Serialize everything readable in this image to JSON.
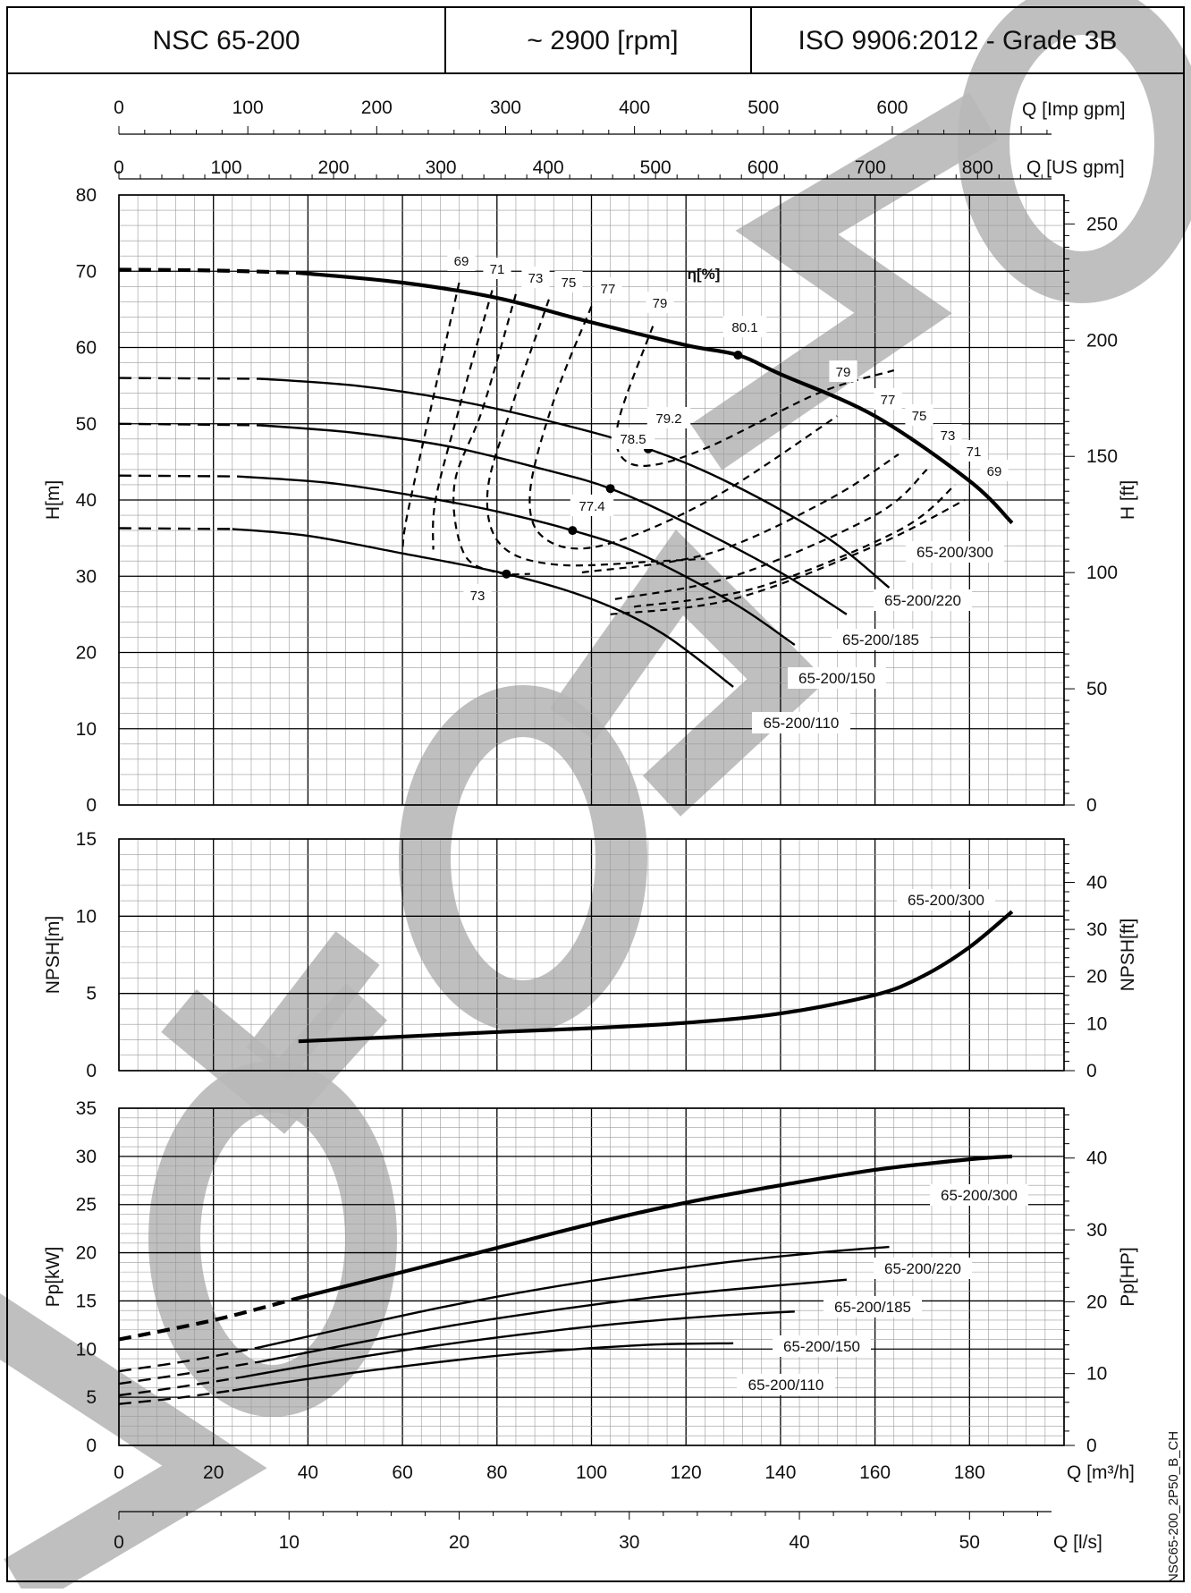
{
  "header": {
    "model": "NSC 65-200",
    "speed": "~ 2900 [rpm]",
    "standard": "ISO 9906:2012 - Grade 3B"
  },
  "code": "NSC65-200_2P50_B_CH",
  "watermark": "MOTORMO",
  "colors": {
    "curve": "#000000",
    "grid_major": "#000000",
    "grid_minor": "#9a9a9a",
    "watermark": "#b8b8b8"
  },
  "axes": {
    "q_imp": {
      "label": "Q [Imp gpm]",
      "ticks": [
        "0",
        "100",
        "200",
        "300",
        "400",
        "500",
        "600"
      ]
    },
    "q_us": {
      "label": "Q [US gpm]",
      "ticks": [
        "0",
        "100",
        "200",
        "300",
        "400",
        "500",
        "600",
        "700",
        "800"
      ]
    },
    "q_m3h": {
      "label": "Q [m³/h]",
      "ticks": [
        "0",
        "20",
        "40",
        "60",
        "80",
        "100",
        "120",
        "140",
        "160",
        "180"
      ]
    },
    "q_ls": {
      "label": "Q [l/s]",
      "ticks": [
        "0",
        "10",
        "20",
        "30",
        "40",
        "50"
      ]
    },
    "h_m": {
      "label": "H[m]",
      "ticks": [
        "0",
        "10",
        "20",
        "30",
        "40",
        "50",
        "60",
        "70",
        "80"
      ]
    },
    "h_ft": {
      "label": "H [ft]",
      "ticks": [
        "0",
        "50",
        "100",
        "150",
        "200",
        "250"
      ]
    },
    "npsh_m": {
      "label": "NPSH[m]",
      "ticks": [
        "0",
        "5",
        "10",
        "15"
      ]
    },
    "npsh_ft": {
      "label": "NPSH[ft]",
      "ticks": [
        "0",
        "10",
        "20",
        "30",
        "40"
      ]
    },
    "pp_kw": {
      "label": "Pp[kW]",
      "ticks": [
        "0",
        "5",
        "10",
        "15",
        "20",
        "25",
        "30",
        "35"
      ]
    },
    "pp_hp": {
      "label": "Pp[HP]",
      "ticks": [
        "0",
        "10",
        "20",
        "30",
        "40"
      ]
    }
  },
  "chart_data": [
    {
      "type": "line",
      "panel": "head",
      "title": "",
      "xlabel": "Q [m³/h]",
      "ylabel": "H[m]",
      "xlim": [
        0,
        200
      ],
      "ylim": [
        0,
        80
      ],
      "efficiency_label": "η[%]",
      "series": [
        {
          "name": "65-200/300",
          "dashed_until": 38,
          "x": [
            0,
            20,
            38,
            60,
            80,
            100,
            120,
            131,
            140,
            160,
            180,
            189
          ],
          "y": [
            70.2,
            70.1,
            69.8,
            68.5,
            66.5,
            63.3,
            60.3,
            59,
            56.5,
            51,
            42.5,
            37
          ]
        },
        {
          "name": "65-200/220",
          "dashed_until": 30,
          "x": [
            0,
            30,
            50,
            70,
            90,
            112,
            130,
            150,
            163
          ],
          "y": [
            56,
            55.9,
            55,
            53.2,
            50.5,
            46.7,
            42,
            35,
            28.5
          ]
        },
        {
          "name": "65-200/185",
          "dashed_until": 30,
          "x": [
            0,
            30,
            50,
            70,
            90,
            104,
            120,
            140,
            154
          ],
          "y": [
            50,
            49.8,
            48.8,
            47,
            44,
            41.5,
            37,
            30.5,
            25
          ]
        },
        {
          "name": "65-200/150",
          "dashed_until": 25,
          "x": [
            0,
            25,
            45,
            65,
            80,
            96,
            110,
            130,
            143
          ],
          "y": [
            43.2,
            43.1,
            42.2,
            40.3,
            38.5,
            36,
            33,
            26.5,
            21
          ]
        },
        {
          "name": "65-200/110",
          "dashed_until": 24,
          "x": [
            0,
            24,
            40,
            60,
            82,
            100,
            115,
            130
          ],
          "y": [
            36.3,
            36.2,
            35.3,
            33,
            30.3,
            27,
            22.5,
            15.5
          ]
        }
      ],
      "bep_points": [
        {
          "series": "65-200/300",
          "x": 131,
          "y": 59,
          "eta": "80.1"
        },
        {
          "series": "65-200/220",
          "x": 112,
          "y": 46.7,
          "eta": "79.2"
        },
        {
          "series": "65-200/185",
          "x": 104,
          "y": 41.5,
          "eta": "78.5"
        },
        {
          "series": "65-200/150",
          "x": 96,
          "y": 36,
          "eta": "77.4"
        },
        {
          "series": "65-200/110",
          "x": 82,
          "y": 30.3,
          "eta": "73"
        }
      ],
      "efficiency_contours": [
        {
          "label": "69",
          "x": [
            72,
            66,
            61,
            60
          ],
          "y": [
            68.5,
            52,
            38,
            33.5
          ]
        },
        {
          "label": "71",
          "x": [
            79,
            72,
            67,
            66.5
          ],
          "y": [
            67.5,
            52,
            40,
            33.5
          ]
        },
        {
          "label": "73",
          "x": [
            84,
            77,
            71,
            73,
            80,
            87
          ],
          "y": [
            67,
            52,
            42,
            33,
            30.5,
            30.3
          ]
        },
        {
          "label": "75",
          "x": [
            91,
            83,
            78,
            81,
            93,
            115,
            124
          ],
          "y": [
            66.3,
            52,
            41,
            34,
            31.5,
            32,
            32.3
          ]
        },
        {
          "label": "77",
          "x": [
            100,
            92,
            87,
            90,
            102,
            125,
            152
          ],
          "y": [
            65.4,
            53,
            41,
            35,
            34,
            40,
            51
          ]
        },
        {
          "label": "79",
          "x": [
            113,
            106,
            106,
            112,
            125,
            148,
            164
          ],
          "y": [
            62.8,
            51,
            46,
            44.5,
            47,
            54,
            57
          ]
        }
      ],
      "efficiency_contours_right": [
        {
          "label": "75",
          "x": [
            98,
            125,
            150,
            165
          ],
          "y": [
            30.5,
            33,
            40,
            46
          ]
        },
        {
          "label": "73",
          "x": [
            105,
            130,
            160,
            171
          ],
          "y": [
            27,
            30,
            38,
            44
          ]
        },
        {
          "label": "71",
          "x": [
            109,
            135,
            165,
            177
          ],
          "y": [
            26,
            28.5,
            36,
            42
          ]
        },
        {
          "label": "69",
          "x": [
            104,
            130,
            160,
            179
          ],
          "y": [
            25,
            27,
            34,
            40
          ]
        }
      ]
    },
    {
      "type": "line",
      "panel": "npsh",
      "title": "",
      "xlabel": "Q [m³/h]",
      "ylabel": "NPSH[m]",
      "xlim": [
        0,
        200
      ],
      "ylim": [
        0,
        15
      ],
      "series": [
        {
          "name": "65-200/300",
          "x": [
            38,
            60,
            80,
            100,
            120,
            140,
            160,
            170,
            180,
            189
          ],
          "y": [
            1.9,
            2.2,
            2.5,
            2.75,
            3.1,
            3.7,
            4.9,
            6.1,
            8.0,
            10.3
          ]
        }
      ]
    },
    {
      "type": "line",
      "panel": "power",
      "title": "",
      "xlabel": "Q [m³/h]",
      "ylabel": "Pp[kW]",
      "xlim": [
        0,
        200
      ],
      "ylim": [
        0,
        35
      ],
      "series": [
        {
          "name": "65-200/300",
          "dashed_until": 38,
          "x": [
            0,
            20,
            38,
            60,
            80,
            100,
            120,
            140,
            160,
            180,
            189
          ],
          "y": [
            11,
            13,
            15.3,
            18,
            20.5,
            23,
            25.2,
            27,
            28.6,
            29.7,
            30
          ]
        },
        {
          "name": "65-200/220",
          "dashed_until": 30,
          "x": [
            0,
            15,
            30,
            50,
            70,
            90,
            110,
            130,
            150,
            163
          ],
          "y": [
            7.7,
            8.8,
            10.2,
            12.4,
            14.5,
            16.3,
            17.8,
            19.1,
            20.1,
            20.6
          ]
        },
        {
          "name": "65-200/185",
          "dashed_until": 30,
          "x": [
            0,
            15,
            30,
            50,
            70,
            90,
            110,
            130,
            154
          ],
          "y": [
            6.4,
            7.5,
            8.7,
            10.6,
            12.4,
            13.9,
            15.2,
            16.2,
            17.2
          ]
        },
        {
          "name": "65-200/150",
          "dashed_until": 25,
          "x": [
            0,
            12,
            25,
            45,
            65,
            85,
            105,
            125,
            143
          ],
          "y": [
            5.2,
            6.0,
            7.0,
            8.7,
            10.2,
            11.5,
            12.6,
            13.4,
            13.9
          ]
        },
        {
          "name": "65-200/110",
          "dashed_until": 24,
          "x": [
            0,
            12,
            24,
            40,
            60,
            80,
            100,
            115,
            130
          ],
          "y": [
            4.3,
            4.9,
            5.7,
            6.9,
            8.2,
            9.3,
            10.1,
            10.5,
            10.6
          ]
        }
      ]
    }
  ]
}
